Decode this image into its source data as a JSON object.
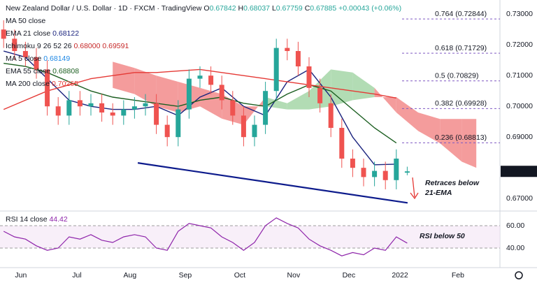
{
  "header": {
    "title": "New Zealand Dollar / U.S. Dollar · 1D · FXCM · TradingView",
    "ohlc": [
      {
        "key": "O",
        "value": 0.67842
      },
      {
        "key": "H",
        "value": 0.68037
      },
      {
        "key": "L",
        "value": 0.67759
      },
      {
        "key": "C",
        "value": 0.67885
      }
    ],
    "change": {
      "value": 0.00043,
      "label": "+0.00043"
    },
    "change_pct": {
      "value": 0.06,
      "label": "(+0.06%)"
    }
  },
  "chart_data": {
    "type": "candlestick",
    "xlim": [
      0,
      275
    ],
    "xticks": [
      {
        "value": 11.5,
        "label": "Jun"
      },
      {
        "value": 42.3,
        "label": "Jul"
      },
      {
        "value": 71.5,
        "label": "Aug"
      },
      {
        "value": 101.9,
        "label": "Sep"
      },
      {
        "value": 131.9,
        "label": "Oct"
      },
      {
        "value": 161.5,
        "label": "Nov"
      },
      {
        "value": 191.9,
        "label": "Dec"
      },
      {
        "value": 220,
        "label": "2022"
      },
      {
        "value": 251.9,
        "label": "Feb"
      }
    ],
    "ylim": [
      0.6664,
      0.7346
    ],
    "yticks": [
      {
        "value": 0.73,
        "label": "0.73000"
      },
      {
        "value": 0.72,
        "label": "0.72000"
      },
      {
        "value": 0.71,
        "label": "0.71000"
      },
      {
        "value": 0.7,
        "label": "0.70000"
      },
      {
        "value": 0.69,
        "label": "0.69000"
      },
      {
        "value": 0.67,
        "label": "0.67000"
      }
    ],
    "grid": true,
    "up_color": "#26a69a",
    "down_color": "#ef5350",
    "candles": {
      "x": [
        2,
        8,
        14,
        20,
        26,
        32,
        38,
        44,
        50,
        56,
        62,
        68,
        74,
        80,
        86,
        92,
        98,
        104,
        110,
        116,
        122,
        128,
        134,
        140,
        146,
        152,
        158,
        164,
        170,
        176,
        182,
        188,
        194,
        200,
        206,
        212,
        218,
        224
      ],
      "open": [
        0.725,
        0.722,
        0.718,
        0.716,
        0.712,
        0.7,
        0.697,
        0.702,
        0.7,
        0.701,
        0.698,
        0.697,
        0.699,
        0.7,
        0.701,
        0.694,
        0.69,
        0.699,
        0.709,
        0.71,
        0.707,
        0.702,
        0.697,
        0.69,
        0.694,
        0.705,
        0.719,
        0.718,
        0.713,
        0.706,
        0.701,
        0.693,
        0.683,
        0.68,
        0.677,
        0.679,
        0.676,
        0.67842
      ],
      "high": [
        0.728,
        0.725,
        0.721,
        0.719,
        0.715,
        0.703,
        0.705,
        0.705,
        0.704,
        0.704,
        0.701,
        0.702,
        0.703,
        0.704,
        0.704,
        0.697,
        0.702,
        0.712,
        0.713,
        0.713,
        0.71,
        0.705,
        0.7,
        0.697,
        0.708,
        0.722,
        0.722,
        0.721,
        0.716,
        0.709,
        0.704,
        0.696,
        0.686,
        0.683,
        0.682,
        0.682,
        0.686,
        0.68037
      ],
      "low": [
        0.719,
        0.715,
        0.713,
        0.709,
        0.697,
        0.694,
        0.694,
        0.697,
        0.697,
        0.695,
        0.694,
        0.694,
        0.696,
        0.697,
        0.691,
        0.687,
        0.687,
        0.696,
        0.706,
        0.704,
        0.699,
        0.694,
        0.687,
        0.687,
        0.691,
        0.702,
        0.715,
        0.71,
        0.703,
        0.698,
        0.69,
        0.68,
        0.677,
        0.674,
        0.674,
        0.673,
        0.673,
        0.67759
      ],
      "close": [
        0.722,
        0.718,
        0.716,
        0.712,
        0.7,
        0.697,
        0.702,
        0.7,
        0.701,
        0.698,
        0.697,
        0.699,
        0.7,
        0.701,
        0.694,
        0.69,
        0.699,
        0.709,
        0.71,
        0.707,
        0.702,
        0.697,
        0.69,
        0.694,
        0.705,
        0.719,
        0.718,
        0.713,
        0.706,
        0.701,
        0.693,
        0.683,
        0.68,
        0.677,
        0.679,
        0.676,
        0.683,
        0.67885
      ]
    },
    "price_tag_color": "#131722",
    "cloud": {
      "x": [
        62,
        74,
        86,
        98,
        110,
        122,
        134,
        146,
        158,
        170,
        182,
        194,
        206,
        218,
        230,
        242,
        254,
        262
      ],
      "span_a": [
        0.706,
        0.704,
        0.7,
        0.698,
        0.7,
        0.696,
        0.694,
        0.703,
        0.701,
        0.705,
        0.712,
        0.711,
        0.706,
        0.698,
        0.692,
        0.688,
        0.682,
        0.68
      ],
      "span_b": [
        0.7145,
        0.7125,
        0.71,
        0.708,
        0.706,
        0.704,
        0.7,
        0.7,
        0.699,
        0.699,
        0.7,
        0.702,
        0.703,
        0.703,
        0.698,
        0.6959,
        0.6959,
        0.6959
      ],
      "bull_color": "#a5d6a7",
      "bear_color": "#f28b8b"
    },
    "series": [
      {
        "name": "EMA 21",
        "color": "#1a237e",
        "x": [
          2,
          14,
          26,
          38,
          50,
          62,
          74,
          86,
          98,
          110,
          122,
          134,
          146,
          158,
          170,
          182,
          194,
          206,
          218
        ],
        "values": [
          0.718,
          0.716,
          0.709,
          0.702,
          0.7,
          0.699,
          0.699,
          0.7,
          0.697,
          0.703,
          0.706,
          0.7,
          0.697,
          0.708,
          0.712,
          0.703,
          0.69,
          0.681,
          0.6812
        ]
      },
      {
        "name": "EMA 55",
        "color": "#1b5e20",
        "x": [
          2,
          14,
          26,
          38,
          50,
          62,
          74,
          86,
          98,
          110,
          122,
          134,
          146,
          158,
          170,
          182,
          194,
          206,
          218
        ],
        "values": [
          0.714,
          0.713,
          0.711,
          0.708,
          0.705,
          0.703,
          0.702,
          0.701,
          0.7,
          0.702,
          0.703,
          0.701,
          0.7,
          0.704,
          0.707,
          0.705,
          0.699,
          0.693,
          0.6881
        ]
      },
      {
        "name": "MA 200",
        "color": "#e53935",
        "x": [
          2,
          14,
          26,
          38,
          50,
          62,
          74,
          86,
          98,
          110,
          122,
          134,
          146,
          158,
          170,
          182,
          194,
          206,
          218
        ],
        "values": [
          0.699,
          0.702,
          0.705,
          0.707,
          0.709,
          0.71,
          0.711,
          0.711,
          0.7115,
          0.712,
          0.711,
          0.71,
          0.709,
          0.708,
          0.707,
          0.706,
          0.705,
          0.704,
          0.7027
        ]
      }
    ],
    "trendline": {
      "color": "#0d1b8c",
      "x": [
        75.8,
        224.2
      ],
      "y": [
        0.6816,
        0.6686
      ]
    },
    "fib_levels": [
      {
        "label": "0.764 (0.72844)",
        "value": 0.72844
      },
      {
        "label": "0.618 (0.71729)",
        "value": 0.71729
      },
      {
        "label": "0.5 (0.70829)",
        "value": 0.70829
      },
      {
        "label": "0.382 (0.69928)",
        "value": 0.69928
      },
      {
        "label": "0.236 (0.68813)",
        "value": 0.68813
      }
    ],
    "legend": [
      {
        "label": "MA 50 close",
        "values": [],
        "color": "#787b86"
      },
      {
        "label": "EMA 21 close",
        "values": [
          0.68122
        ],
        "color": "#1a237e"
      },
      {
        "label": "Ichimoku 9 26 52 26",
        "values": [
          {
            "value": 0.68,
            "label": "0.68000"
          },
          0.69591
        ],
        "color": "#c62828"
      },
      {
        "label": "MA 5 close",
        "values": [
          0.68149
        ],
        "color": "#1e88e5"
      },
      {
        "label": "EMA 55 close",
        "values": [
          0.68808
        ],
        "color": "#1b5e20"
      },
      {
        "label": "MA 200 close",
        "values": [
          0.70265
        ],
        "color": "#e53935"
      }
    ],
    "annotations": [
      {
        "lines": [
          "Retraces below",
          "21-EMA"
        ]
      }
    ],
    "rsi": {
      "label": "RSI 14 close",
      "last": 44.42,
      "color": "#8e24aa",
      "x": [
        2,
        8,
        14,
        20,
        26,
        32,
        38,
        44,
        50,
        56,
        62,
        68,
        74,
        80,
        86,
        92,
        98,
        104,
        110,
        116,
        122,
        128,
        134,
        140,
        146,
        152,
        158,
        164,
        170,
        176,
        182,
        188,
        194,
        200,
        206,
        212,
        218,
        224
      ],
      "values": [
        55,
        50,
        48,
        42,
        38,
        40,
        50,
        48,
        52,
        47,
        45,
        50,
        52,
        50,
        40,
        38,
        55,
        62,
        60,
        58,
        50,
        45,
        38,
        45,
        60,
        67,
        62,
        58,
        48,
        42,
        38,
        33,
        36,
        34,
        40,
        38,
        50,
        44.42
      ],
      "ylim": [
        27.5,
        71.25
      ],
      "yticks": [
        {
          "value": 60,
          "label": "60.00"
        },
        {
          "value": 40,
          "label": "40.00"
        }
      ],
      "annotation": "RSI below 50"
    }
  }
}
